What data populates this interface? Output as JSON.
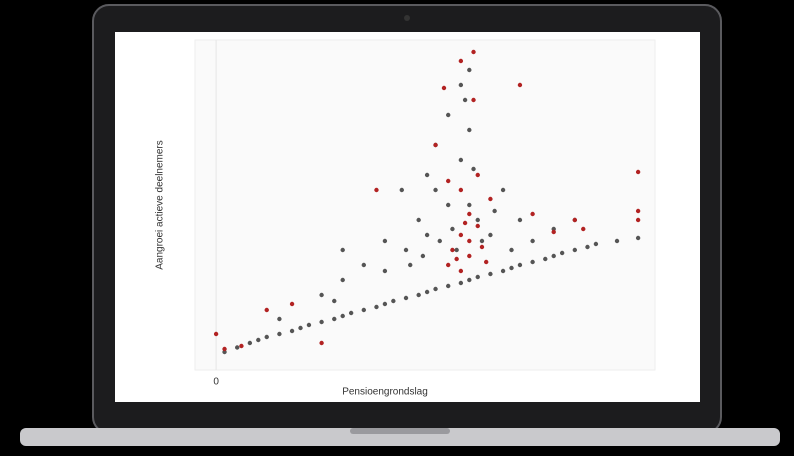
{
  "chart_data": {
    "type": "scatter",
    "x_label": "Pensioengrondslag",
    "y_label": "Aangroei actieve deelnemers",
    "xlim": [
      -5,
      104
    ],
    "ylim": [
      -5,
      105
    ],
    "xticks": [
      0
    ],
    "series": [
      {
        "color": "#555555",
        "x": [
          2,
          5,
          8,
          10,
          12,
          15,
          18,
          20,
          22,
          25,
          28,
          30,
          32,
          35,
          38,
          40,
          42,
          45,
          48,
          50,
          52,
          55,
          58,
          60,
          62,
          65,
          68,
          70,
          72,
          75,
          78,
          80,
          82,
          85,
          88,
          90,
          95,
          100,
          15,
          25,
          30,
          35,
          40,
          45,
          48,
          50,
          52,
          55,
          50,
          52,
          55,
          58,
          58,
          60,
          60,
          62,
          65,
          68,
          70,
          72,
          75,
          80,
          85,
          30,
          28,
          40,
          44,
          46,
          53,
          57,
          60,
          59,
          61,
          56,
          49,
          63,
          66
        ],
        "values": [
          1,
          2.5,
          4,
          5,
          6,
          7,
          8,
          9,
          10,
          11,
          12,
          13,
          14,
          15,
          16,
          17,
          18,
          19,
          20,
          21,
          22,
          23,
          24,
          25,
          26,
          27,
          28,
          29,
          30,
          31,
          32,
          33,
          34,
          35,
          36,
          37,
          38,
          39,
          12,
          20,
          25,
          30,
          28,
          35,
          45,
          40,
          55,
          50,
          60,
          70,
          80,
          65,
          90,
          75,
          50,
          45,
          40,
          55,
          35,
          45,
          38,
          42,
          45,
          35,
          18,
          38,
          55,
          30,
          38,
          35,
          95,
          85,
          62,
          42,
          33,
          38,
          48
        ]
      },
      {
        "color": "#b22222",
        "x": [
          0,
          2,
          6,
          12,
          18,
          25,
          38,
          52,
          55,
          55,
          56,
          57,
          58,
          58,
          58,
          58,
          59,
          60,
          60,
          60,
          61,
          61,
          62,
          62,
          63,
          64,
          65,
          72,
          75,
          80,
          85,
          87,
          100,
          100,
          100,
          54
        ],
        "values": [
          7,
          2,
          3,
          15,
          17,
          4,
          55,
          70,
          58,
          30,
          35,
          32,
          28,
          40,
          55,
          98,
          44,
          33,
          38,
          47,
          101,
          85,
          60,
          43,
          36,
          31,
          52,
          90,
          47,
          41,
          45,
          42,
          61,
          48,
          45,
          89
        ]
      }
    ]
  }
}
